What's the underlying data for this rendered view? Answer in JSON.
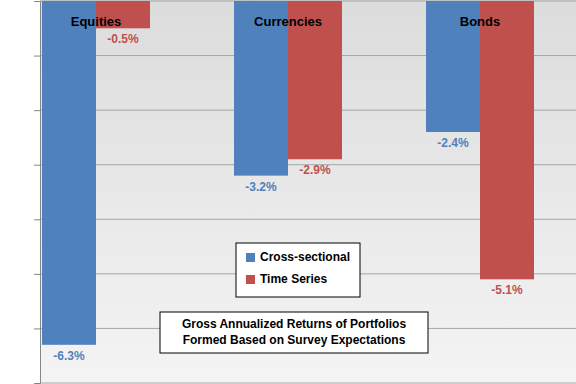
{
  "chart_data": {
    "type": "bar",
    "title": "Gross Annualized Returns of Portfolios\nFormed Based on Survey Expectations",
    "categories": [
      "Equities",
      "Currencies",
      "Bonds"
    ],
    "series": [
      {
        "name": "Cross-sectional",
        "color": "#4f81bd",
        "values": [
          -6.3,
          -3.2,
          -2.4
        ],
        "value_labels": [
          "-6.3%",
          "-3.2%",
          "-2.4%"
        ]
      },
      {
        "name": "Time Series",
        "color": "#c0504d",
        "values": [
          -0.5,
          -2.9,
          -5.1
        ],
        "value_labels": [
          "-0.5%",
          "-2.9%",
          "-5.1%"
        ]
      }
    ],
    "ylim": [
      -7,
      0
    ],
    "yticks": [
      -7,
      -6,
      -5,
      -4,
      -3,
      -2,
      -1,
      0
    ],
    "grid": true,
    "legend": "center",
    "data_labels": true,
    "tick_labels": "x"
  }
}
